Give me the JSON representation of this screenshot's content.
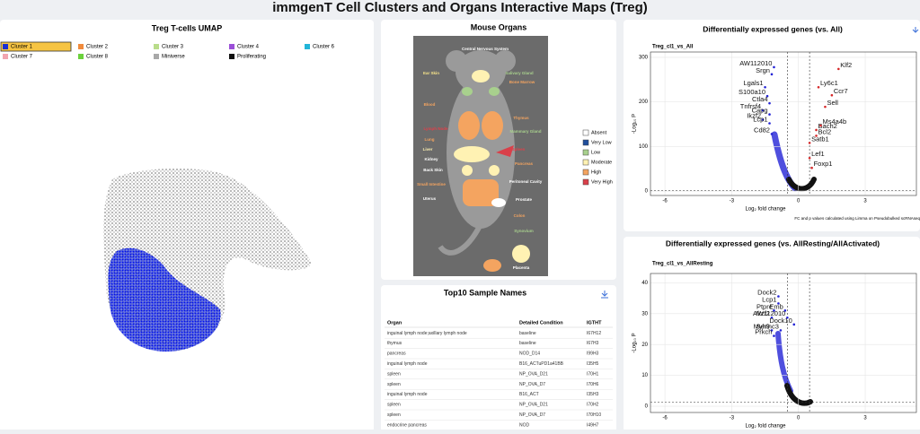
{
  "header": {
    "title": "immgenT Cell Clusters and Organs Interactive Maps (Treg)"
  },
  "umap": {
    "title": "Treg T-cells UMAP",
    "selected_index": 0,
    "legend": [
      {
        "name": "Cluster 1",
        "color": "#1a2fd0"
      },
      {
        "name": "Cluster 2",
        "color": "#f08a3c"
      },
      {
        "name": "Cluster 3",
        "color": "#b9dc8a"
      },
      {
        "name": "Cluster 4",
        "color": "#9b4fd8"
      },
      {
        "name": "Cluster 6",
        "color": "#22b5d8"
      },
      {
        "name": "Cluster 7",
        "color": "#f2a5b0"
      },
      {
        "name": "Cluster 8",
        "color": "#6bd13c"
      },
      {
        "name": "Miniverse",
        "color": "#a8a8a8"
      },
      {
        "name": "Proliferating",
        "color": "#111111"
      }
    ]
  },
  "organs": {
    "title": "Mouse Organs",
    "labels": [
      {
        "text": "Central Nervous System",
        "color": "#ffffff"
      },
      {
        "text": "Ear Skin",
        "color": "#f7e48a"
      },
      {
        "text": "Salivary Gland",
        "color": "#a8d08d"
      },
      {
        "text": "Bone Marrow",
        "color": "#f4a460"
      },
      {
        "text": "Blood",
        "color": "#f4a460"
      },
      {
        "text": "Thymus",
        "color": "#f4a460"
      },
      {
        "text": "Lymph Node",
        "color": "#e0404a"
      },
      {
        "text": "Mammary Gland",
        "color": "#a8d08d"
      },
      {
        "text": "Lung",
        "color": "#f4a460"
      },
      {
        "text": "Spleen",
        "color": "#e0404a"
      },
      {
        "text": "Liver",
        "color": "#fff2b3"
      },
      {
        "text": "Kidney",
        "color": "#ffffff"
      },
      {
        "text": "Pancreas",
        "color": "#f4a460"
      },
      {
        "text": "Back Skin",
        "color": "#ffffff"
      },
      {
        "text": "Small Intestine",
        "color": "#f4a460"
      },
      {
        "text": "Peritoneal Cavity",
        "color": "#ffffff"
      },
      {
        "text": "Uterus",
        "color": "#ffffff"
      },
      {
        "text": "Prostate",
        "color": "#ffffff"
      },
      {
        "text": "Colon",
        "color": "#f4a460"
      },
      {
        "text": "Synovium",
        "color": "#a8d08d"
      },
      {
        "text": "Tumor",
        "color": "#f4a460"
      },
      {
        "text": "Placenta",
        "color": "#ffffff"
      }
    ],
    "legend": [
      {
        "name": "Absent",
        "color": "#ffffff"
      },
      {
        "name": "Very Low",
        "color": "#1f4e9c"
      },
      {
        "name": "Low",
        "color": "#a8d08d"
      },
      {
        "name": "Moderate",
        "color": "#fff2b3"
      },
      {
        "name": "High",
        "color": "#f4a460"
      },
      {
        "name": "Very High",
        "color": "#d9404a"
      }
    ]
  },
  "samples": {
    "title": "Top10 Sample Names",
    "columns": [
      "Organ",
      "Detailed Condition",
      "IGTHT"
    ],
    "rows": [
      [
        "inguinal lymph node;axillary lymph node",
        "baseline",
        "I67H12"
      ],
      [
        "thymus",
        "baseline",
        "I67H3"
      ],
      [
        "pancreas",
        "NOD_D14",
        "I99H3"
      ],
      [
        "inguinal lymph node",
        "B16_ACTuPD1a41BB",
        "I35H5"
      ],
      [
        "spleen",
        "NP_OVA_D21",
        "I70H1"
      ],
      [
        "spleen",
        "NP_OVA_D7",
        "I70H6"
      ],
      [
        "inguinal lymph node",
        "B16_ACT",
        "I35H3"
      ],
      [
        "spleen",
        "NP_OVA_D21",
        "I70H2"
      ],
      [
        "spleen",
        "NP_OVA_D7",
        "I70H10"
      ],
      [
        "endocrine pancreas",
        "NOD",
        "I49H7"
      ]
    ]
  },
  "chart_data": [
    {
      "type": "scatter",
      "title": "Differentially expressed genes (vs. All)",
      "subtitle": "Treg_cl1_vs_All",
      "x_label": "Log₂ fold change",
      "y_label": "-Log₁₀ P",
      "note": "FC and p values calculated using Limma on Pseudobulked scRNAseq",
      "xlim": [
        -6.65,
        5.3
      ],
      "ylim": [
        -10,
        312
      ],
      "xticks": [
        -6,
        -3,
        0,
        3
      ],
      "yticks": [
        0,
        100,
        200,
        300
      ],
      "grid": true,
      "thresholds": {
        "x": [
          -0.5,
          0.5
        ],
        "y": 1.3
      },
      "colors": {
        "down": "#2323d6",
        "up": "#d62728"
      },
      "points": [
        {
          "label": "AW112010",
          "x": -1.1,
          "y": 278
        },
        {
          "label": "Srgn",
          "x": -1.2,
          "y": 262
        },
        {
          "label": "Klf2",
          "x": 1.8,
          "y": 274
        },
        {
          "label": "Ly6c1",
          "x": 0.9,
          "y": 233
        },
        {
          "label": "Ccr7",
          "x": 1.5,
          "y": 215
        },
        {
          "label": "Lgals1",
          "x": -1.5,
          "y": 233
        },
        {
          "label": "S100a10",
          "x": -1.4,
          "y": 213
        },
        {
          "label": "Sell",
          "x": 1.2,
          "y": 189
        },
        {
          "label": "Ctla4",
          "x": -1.3,
          "y": 197
        },
        {
          "label": "Tnfrsf4",
          "x": -1.6,
          "y": 181
        },
        {
          "label": "Capg",
          "x": -1.3,
          "y": 172
        },
        {
          "label": "Ikzf2",
          "x": -1.6,
          "y": 160
        },
        {
          "label": "Lcp1",
          "x": -1.3,
          "y": 152
        },
        {
          "label": "Bach2",
          "x": 0.8,
          "y": 137
        },
        {
          "label": "Ms4a4b",
          "x": 1.0,
          "y": 147
        },
        {
          "label": "Bcl2",
          "x": 0.8,
          "y": 124
        },
        {
          "label": "Cd82",
          "x": -1.2,
          "y": 128
        },
        {
          "label": "Satb1",
          "x": 0.5,
          "y": 108
        },
        {
          "label": "Lef1",
          "x": 0.5,
          "y": 74
        },
        {
          "label": "Foxp1",
          "x": 0.6,
          "y": 52
        }
      ]
    },
    {
      "type": "scatter",
      "title": "Differentially expressed genes (vs. AllResting/AllActivated)",
      "subtitle": "Treg_cl1_vs_AllResting",
      "x_label": "Log₂ fold change",
      "y_label": "-Log₁₀ P",
      "xlim": [
        -6.65,
        5.3
      ],
      "ylim": [
        -2,
        43
      ],
      "xticks": [
        -6,
        -3,
        0,
        3
      ],
      "yticks": [
        0,
        10,
        20,
        30,
        40
      ],
      "grid": true,
      "thresholds": {
        "x": [
          -0.5,
          0.5
        ],
        "y": 1.3
      },
      "colors": {
        "down": "#2323d6",
        "up": "#d62728"
      },
      "points": [
        {
          "label": "Dock2",
          "x": -0.9,
          "y": 35.6
        },
        {
          "label": "Lcp1",
          "x": -0.9,
          "y": 33.3
        },
        {
          "label": "Ptprc",
          "x": -1.1,
          "y": 31
        },
        {
          "label": "Emb",
          "x": -0.6,
          "y": 31
        },
        {
          "label": "Ikzf2",
          "x": -1.2,
          "y": 28.7
        },
        {
          "label": "AW112010",
          "x": -0.5,
          "y": 28.7
        },
        {
          "label": "Dock10",
          "x": -0.2,
          "y": 26.5
        },
        {
          "label": "Myh9",
          "x": -1.2,
          "y": 24.6
        },
        {
          "label": "Serinc3",
          "x": -0.8,
          "y": 24.6
        },
        {
          "label": "Prkch",
          "x": -1.1,
          "y": 22.8
        }
      ]
    }
  ]
}
